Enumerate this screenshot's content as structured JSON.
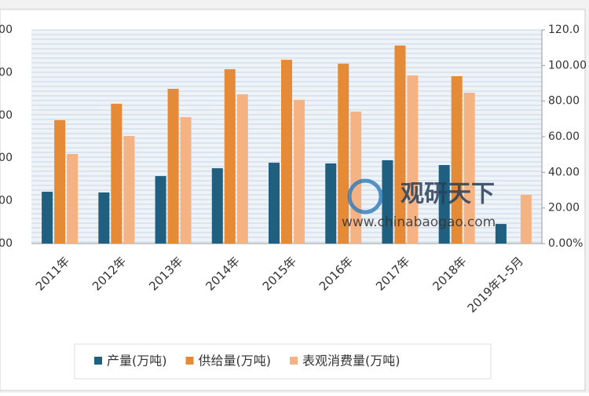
{
  "chart_data": {
    "type": "bar",
    "categories": [
      "2011年",
      "2012年",
      "2013年",
      "2014年",
      "2015年",
      "2016年",
      "2017年",
      "2018年",
      "2019年1-5月"
    ],
    "series": [
      {
        "name": "产量(万吨)",
        "color": "#1f5f7f",
        "values": [
          29.1,
          28.7,
          37.9,
          42.3,
          45.4,
          45.0,
          46.8,
          44.1,
          11.0
        ]
      },
      {
        "name": "供给量(万吨)",
        "color": "#e58a36",
        "values": [
          69.3,
          78.5,
          86.9,
          97.9,
          103.2,
          101.0,
          111.2,
          94.0,
          null
        ]
      },
      {
        "name": "表观消费量(万吨)",
        "color": "#f5b283",
        "values": [
          50.3,
          60.4,
          71.0,
          83.8,
          80.7,
          74.1,
          94.4,
          84.7,
          27.4
        ]
      }
    ],
    "ylim": [
      0,
      120
    ],
    "yticks": [
      {
        "value": 0,
        "label": "0.00%"
      },
      {
        "value": 20,
        "label": "20.00"
      },
      {
        "value": 40,
        "label": "40.00"
      },
      {
        "value": 60,
        "label": "60.00"
      },
      {
        "value": 80,
        "label": "80.00"
      },
      {
        "value": 100,
        "label": "100.00"
      },
      {
        "value": 120,
        "label": "120.0"
      }
    ],
    "left_axis_labels": [
      "00",
      "00",
      "00",
      "00",
      "00",
      "00"
    ],
    "grid": true,
    "watermark": {
      "title": "观研天下",
      "url": "www.chinabaogao.com"
    }
  }
}
